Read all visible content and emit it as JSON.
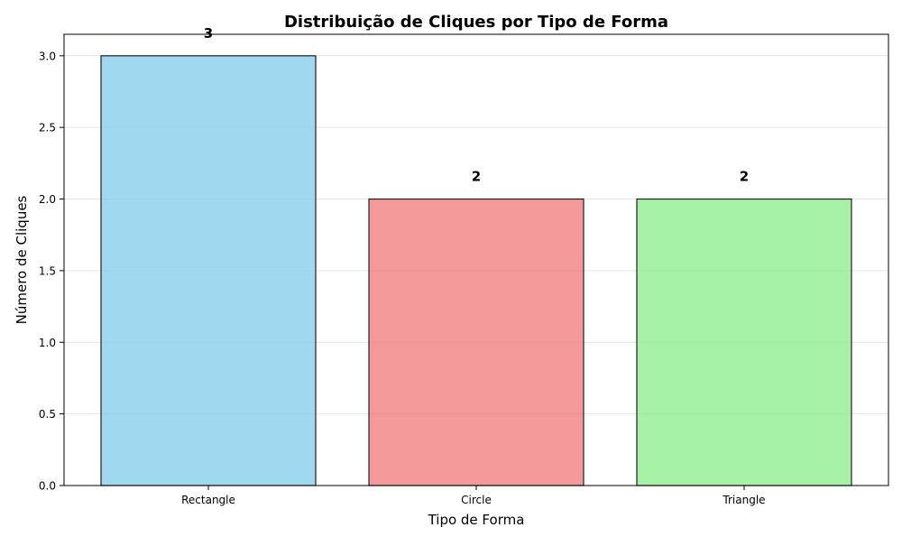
{
  "chart_data": {
    "type": "bar",
    "title": "Distribuição de Cliques por Tipo de Forma",
    "xlabel": "Tipo de Forma",
    "ylabel": "Número de Cliques",
    "categories": [
      "Rectangle",
      "Circle",
      "Triangle"
    ],
    "values": [
      3,
      2,
      2
    ],
    "data_labels": [
      "3",
      "2",
      "2"
    ],
    "colors": [
      "#87CEEB",
      "#F08080",
      "#90EE90"
    ],
    "edge_color": "#1f1f1f",
    "ylim": [
      0,
      3.15
    ],
    "yticks": [
      0.0,
      0.5,
      1.0,
      1.5,
      2.0,
      2.5,
      3.0
    ],
    "ytick_labels": [
      "0.0",
      "0.5",
      "1.0",
      "1.5",
      "2.0",
      "2.5",
      "3.0"
    ],
    "grid": "y",
    "legend": "none"
  }
}
